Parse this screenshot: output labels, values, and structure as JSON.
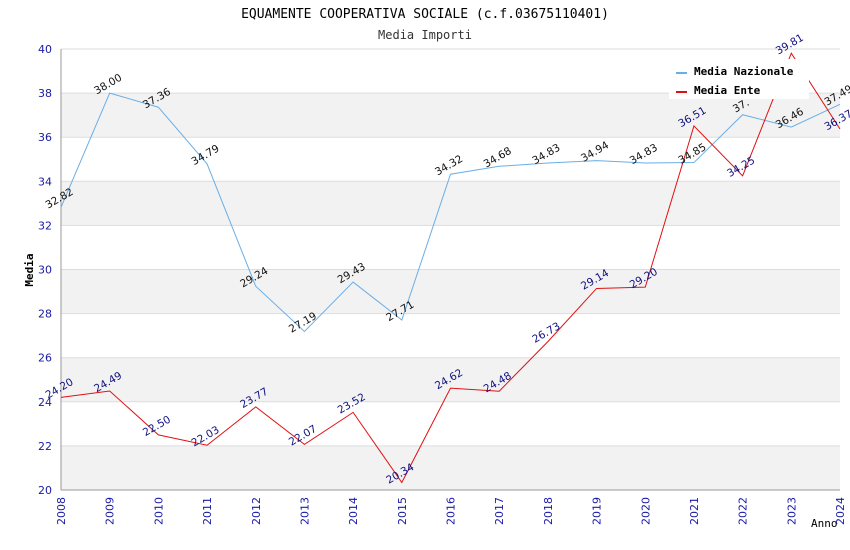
{
  "chart_data": {
    "type": "line",
    "title": "EQUAMENTE COOPERATIVA SOCIALE (c.f.03675110401)",
    "subtitle": "Media Importi",
    "xlabel": "Anno",
    "ylabel": "Media",
    "categories": [
      "2008",
      "2009",
      "2010",
      "2011",
      "2012",
      "2013",
      "2014",
      "2015",
      "2016",
      "2017",
      "2018",
      "2019",
      "2020",
      "2021",
      "2022",
      "2023",
      "2024"
    ],
    "ylim": [
      20,
      40
    ],
    "yticks": [
      20,
      22,
      24,
      26,
      28,
      30,
      32,
      34,
      36,
      38,
      40
    ],
    "ytick_labels": [
      "20",
      "22",
      "24",
      "26",
      "28",
      "30",
      "32",
      "34",
      "36",
      "38",
      "40"
    ],
    "grid": "horizontal bands",
    "legend_position": "top-right",
    "series": [
      {
        "name": "Media Nazionale",
        "color": "#6aaee6",
        "label_color": "#111111",
        "values": [
          32.82,
          38.0,
          37.36,
          34.79,
          29.24,
          27.19,
          29.43,
          27.71,
          34.32,
          34.68,
          34.83,
          34.94,
          34.83,
          34.85,
          37.02,
          36.46,
          37.49
        ],
        "labels": [
          "32.82",
          "38.00",
          "37.36",
          "34.79",
          "29.24",
          "27.19",
          "29.43",
          "27.71",
          "34.32",
          "34.68",
          "34.83",
          "34.94",
          "34.83",
          "34.85",
          "37.",
          "36.46",
          "37.49"
        ]
      },
      {
        "name": "Media Ente",
        "color": "#e01010",
        "label_color": "#101080",
        "values": [
          24.2,
          24.49,
          22.5,
          22.03,
          23.77,
          22.07,
          23.52,
          20.34,
          24.62,
          24.48,
          26.73,
          29.14,
          29.2,
          36.51,
          34.25,
          39.81,
          36.37
        ],
        "labels": [
          "24.20",
          "24.49",
          "22.50",
          "22.03",
          "23.77",
          "22.07",
          "23.52",
          "20.34",
          "24.62",
          "24.48",
          "26.73",
          "29.14",
          "29.20",
          "36.51",
          "34.25",
          "39.81",
          "36.37"
        ]
      }
    ]
  }
}
